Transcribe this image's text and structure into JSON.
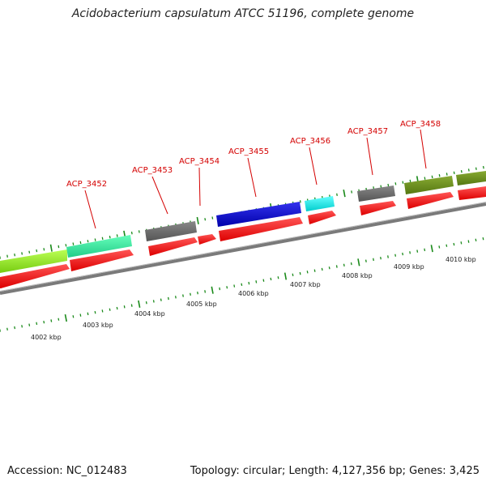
{
  "title": "Acidobacterium capsulatum ATCC 51196, complete genome",
  "footer": {
    "accession": "Accession: NC_012483",
    "summary": "Topology: circular; Length: 4,127,356 bp; Genes: 3,425"
  },
  "genes": [
    {
      "label": "ACP_3452"
    },
    {
      "label": "ACP_3453"
    },
    {
      "label": "ACP_3454"
    },
    {
      "label": "ACP_3455"
    },
    {
      "label": "ACP_3456"
    },
    {
      "label": "ACP_3457"
    },
    {
      "label": "ACP_3458"
    }
  ],
  "kbp_labels": [
    "4002 kbp",
    "4003 kbp",
    "4004 kbp",
    "4005 kbp",
    "4006 kbp",
    "4007 kbp",
    "4008 kbp",
    "4009 kbp",
    "4010 kbp"
  ],
  "colors": {
    "gene_label": "#d40000",
    "cds_arrow": "#ff0000",
    "backbone": "#8a8a8a",
    "tick": "#1a8a1a",
    "light_green": "#99ee33",
    "sea_green": "#33ee99",
    "gray": "#666666",
    "blue": "#1a1acc",
    "cyan": "#11eeee",
    "olive": "#6b8e23"
  }
}
